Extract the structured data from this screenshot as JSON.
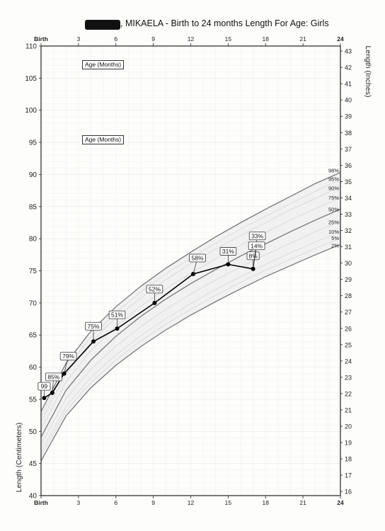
{
  "title": {
    "redacted_name": "",
    "text": ", MIKAELA - Birth to 24 months Length For Age: Girls"
  },
  "axis_titles": {
    "left": "Length (Centimeters)",
    "right": "Length (Inches)"
  },
  "age_boxes": [
    "Age (Months)",
    "Age (Months)"
  ],
  "chart_data": {
    "type": "line",
    "title": ", MIKAELA - Birth to 24 months Length For Age: Girls",
    "xlabel": "",
    "ylabel": "Length (Centimeters)",
    "y2label": "Length (Inches)",
    "xlim": [
      0,
      24
    ],
    "ylim": [
      40,
      110
    ],
    "y2lim": [
      15.75,
      43.31
    ],
    "x_ticks": [
      {
        "value": 0,
        "label": "Birth"
      },
      {
        "value": 3,
        "label": "3"
      },
      {
        "value": 6,
        "label": "6"
      },
      {
        "value": 9,
        "label": "9"
      },
      {
        "value": 12,
        "label": "12"
      },
      {
        "value": 15,
        "label": "15"
      },
      {
        "value": 18,
        "label": "18"
      },
      {
        "value": 21,
        "label": "21"
      },
      {
        "value": 24,
        "label": "24"
      }
    ],
    "y_ticks": [
      40,
      45,
      50,
      55,
      60,
      65,
      70,
      75,
      80,
      85,
      90,
      95,
      100,
      105,
      110
    ],
    "y2_ticks": [
      16,
      17,
      18,
      19,
      20,
      21,
      22,
      23,
      24,
      25,
      26,
      27,
      28,
      29,
      30,
      31,
      32,
      33,
      34,
      35,
      36,
      37,
      38,
      39,
      40,
      41,
      42,
      43
    ],
    "grid": true,
    "percentile_curves": [
      {
        "label": "98%",
        "values": [
          53.1,
          60.6,
          65.6,
          69.4,
          72.6,
          75.4,
          77.9,
          80.3,
          82.5,
          84.6,
          86.6,
          88.6,
          90.3
        ]
      },
      {
        "label": "95%",
        "values": [
          52.3,
          59.8,
          64.7,
          68.5,
          71.7,
          74.5,
          77.0,
          79.3,
          81.5,
          83.5,
          85.5,
          87.4,
          89.2
        ]
      },
      {
        "label": "90%",
        "values": [
          51.5,
          59.0,
          63.9,
          67.7,
          70.8,
          73.6,
          76.1,
          78.4,
          80.5,
          82.5,
          84.5,
          86.3,
          88.1
        ]
      },
      {
        "label": "75%",
        "values": [
          50.4,
          57.7,
          62.6,
          66.3,
          69.5,
          72.2,
          74.6,
          76.9,
          79.0,
          81.0,
          82.9,
          84.7,
          86.4
        ]
      },
      {
        "label": "50%",
        "values": [
          49.1,
          56.4,
          61.1,
          64.8,
          67.9,
          70.6,
          73.0,
          75.2,
          77.3,
          79.2,
          81.1,
          82.9,
          84.6
        ]
      },
      {
        "label": "25%",
        "values": [
          47.9,
          55.1,
          59.7,
          63.3,
          66.3,
          69.0,
          71.4,
          73.6,
          75.6,
          77.5,
          79.3,
          81.1,
          82.7
        ]
      },
      {
        "label": "10%",
        "values": [
          46.8,
          53.9,
          58.4,
          61.9,
          64.9,
          67.5,
          69.9,
          72.1,
          74.1,
          76.0,
          77.8,
          79.5,
          81.1
        ]
      },
      {
        "label": "5%",
        "values": [
          46.1,
          53.2,
          57.6,
          61.1,
          64.1,
          66.7,
          69.0,
          71.2,
          73.2,
          75.1,
          76.8,
          78.5,
          80.1
        ]
      },
      {
        "label": "2%",
        "values": [
          45.4,
          52.4,
          56.8,
          60.3,
          63.2,
          65.8,
          68.1,
          70.2,
          72.2,
          74.1,
          75.8,
          77.5,
          79.1
        ]
      }
    ],
    "percentile_curve_months": [
      0,
      2,
      4,
      6,
      8,
      10,
      12,
      14,
      16,
      18,
      20,
      22,
      24
    ],
    "series": [
      {
        "name": "",
        "points": [
          {
            "x": 0.25,
            "y": 55.2,
            "label": "99"
          },
          {
            "x": 0.9,
            "y": 56.0,
            "label": "85%"
          },
          {
            "x": 1.85,
            "y": 59.0,
            "label": "79%"
          },
          {
            "x": 4.2,
            "y": 64.0,
            "label": "75%"
          },
          {
            "x": 6.1,
            "y": 66.0,
            "label": "51%"
          },
          {
            "x": 9.1,
            "y": 70.0,
            "label": "52%"
          },
          {
            "x": 12.2,
            "y": 74.5,
            "label": "58%"
          },
          {
            "x": 15.0,
            "y": 76.0,
            "label": "31%"
          },
          {
            "x": 17.0,
            "y": 75.3,
            "label": "8%"
          }
        ],
        "extra_labels": [
          {
            "x": 17.0,
            "y": 75.3,
            "label": "33%"
          },
          {
            "x": 17.0,
            "y": 75.3,
            "label": "14%"
          }
        ]
      }
    ]
  }
}
